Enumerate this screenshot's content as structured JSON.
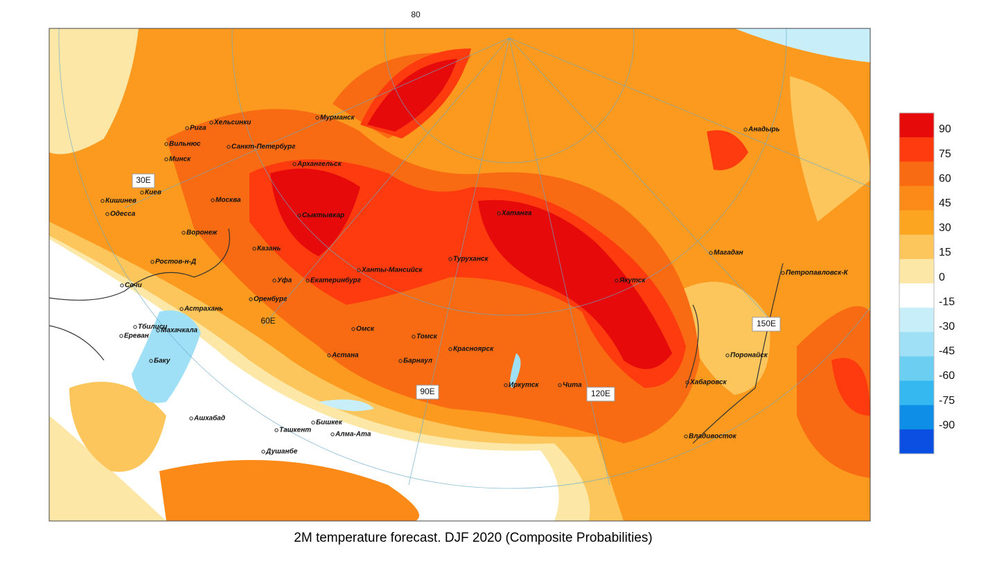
{
  "title": "2M temperature forecast. DJF 2020 (Composite Probabilities)",
  "top_label": "80",
  "meridians": [
    "30E",
    "60E",
    "90E",
    "120E",
    "150E"
  ],
  "cities": [
    "Мурманск",
    "Хельсинки",
    "Рига",
    "Вильнюс",
    "Минск",
    "Санкт-Петербург",
    "Архангельск",
    "Киев",
    "Кишинев",
    "Одесса",
    "Москва",
    "Воронеж",
    "Сыктывкар",
    "Казань",
    "Ростов-н-Д",
    "Уфа",
    "Екатеринбург",
    "Ханты-Мансийск",
    "Туруханск",
    "Хатанга",
    "Якутск",
    "Анадырь",
    "Магадан",
    "Петропавловск-К",
    "Поронайск",
    "Хабаровск",
    "Владивосток",
    "Чита",
    "Иркутск",
    "Красноярск",
    "Томск",
    "Барнаул",
    "Омск",
    "Астана",
    "Оренбург",
    "Сочи",
    "Астрахань",
    "Махачкала",
    "Тбилиси",
    "Ереван",
    "Баку",
    "Ашхабад",
    "Ташкент",
    "Бишкек",
    "Алма-Ата",
    "Душанбе"
  ],
  "colorbar": {
    "ticks": [
      90,
      75,
      60,
      45,
      30,
      15,
      0,
      -15,
      -30,
      -45,
      -60,
      -75,
      -90
    ],
    "colors": [
      "#e60a0a",
      "#fd3b0e",
      "#f96b12",
      "#fb8a18",
      "#fca520",
      "#fdc65c",
      "#fde7a6",
      "#ffffff",
      "#c8eefa",
      "#9fe0f6",
      "#6ccff2",
      "#34b8ef",
      "#0f8ee8",
      "#0a4fe2"
    ]
  }
}
